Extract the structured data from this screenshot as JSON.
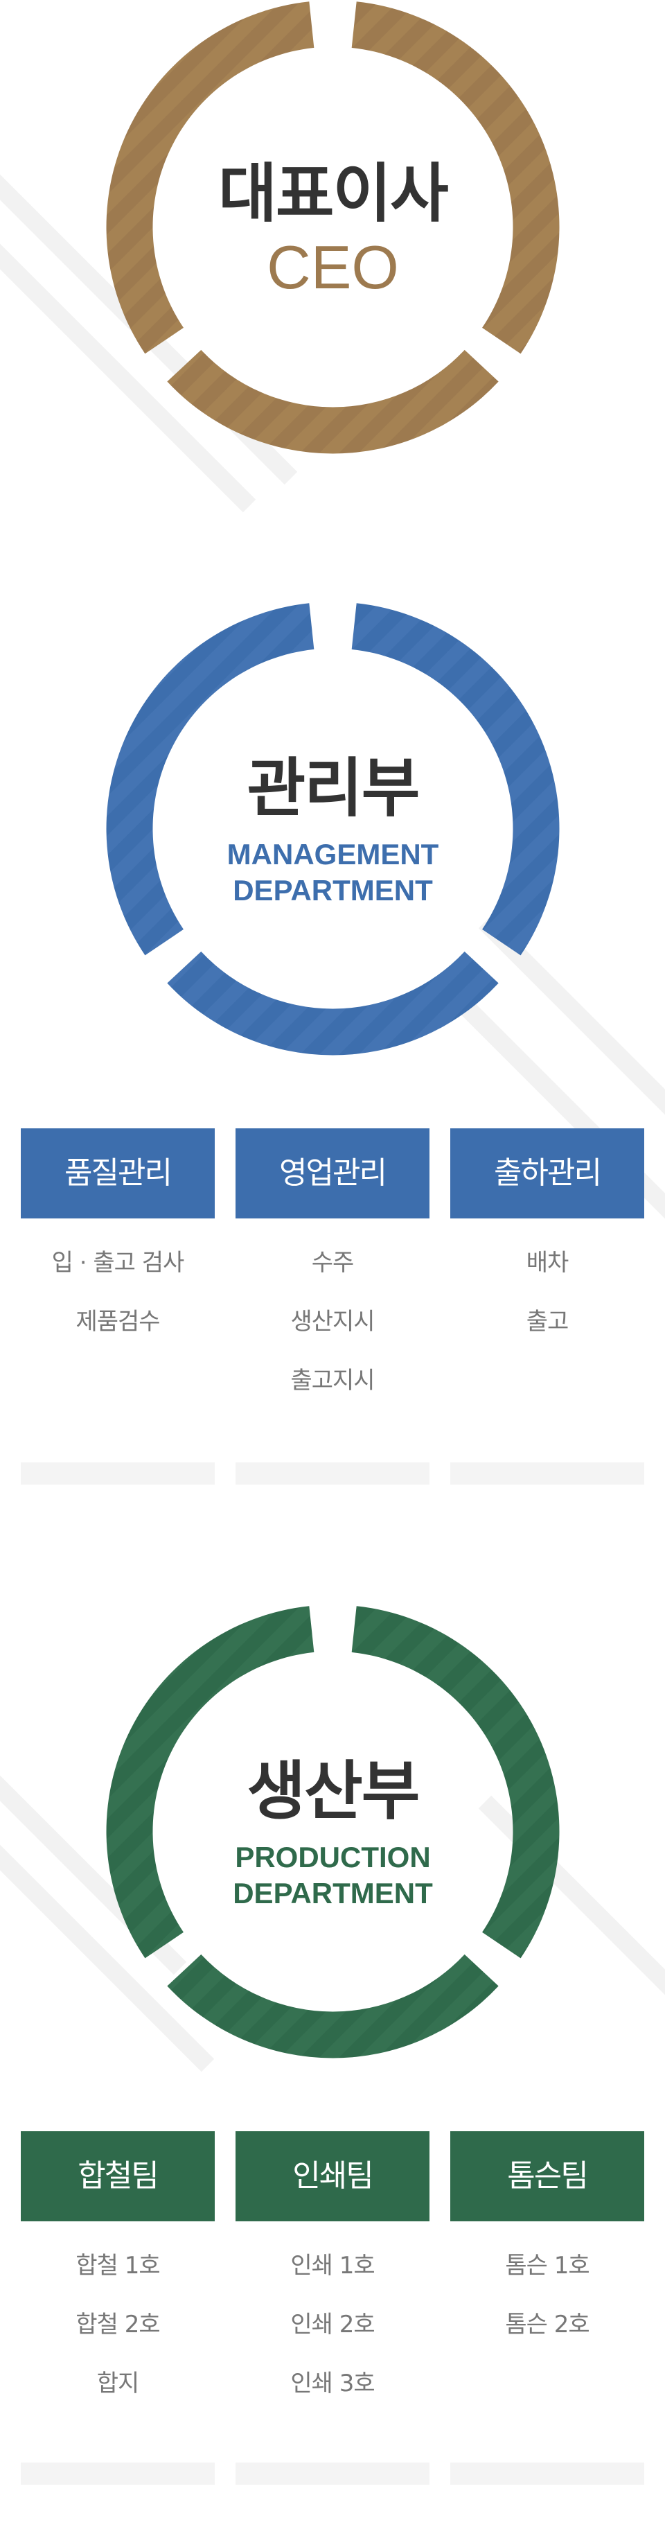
{
  "colors": {
    "ceo": "#9d7a4f",
    "management": "#3d6ead",
    "production": "#2f6a4b",
    "item_text": "#777777",
    "title_text": "#333333",
    "footer_bar": "#f4f4f4"
  },
  "ceo": {
    "title": "대표이사",
    "subtitle": "CEO"
  },
  "management": {
    "title": "관리부",
    "subtitle_line1": "MANAGEMENT",
    "subtitle_line2": "DEPARTMENT",
    "teams": [
      {
        "name": "품질관리",
        "items": [
          "입 · 출고 검사",
          "제품검수"
        ]
      },
      {
        "name": "영업관리",
        "items": [
          "수주",
          "생산지시",
          "출고지시"
        ]
      },
      {
        "name": "출하관리",
        "items": [
          "배차",
          "출고"
        ]
      }
    ]
  },
  "production": {
    "title": "생산부",
    "subtitle_line1": "PRODUCTION",
    "subtitle_line2": "DEPARTMENT",
    "teams": [
      {
        "name": "합철팀",
        "items": [
          "합철 1호",
          "합철 2호",
          "합지"
        ]
      },
      {
        "name": "인쇄팀",
        "items": [
          "인쇄 1호",
          "인쇄 2호",
          "인쇄 3호"
        ]
      },
      {
        "name": "톰슨팀",
        "items": [
          "톰슨 1호",
          "톰슨 2호"
        ]
      }
    ]
  }
}
